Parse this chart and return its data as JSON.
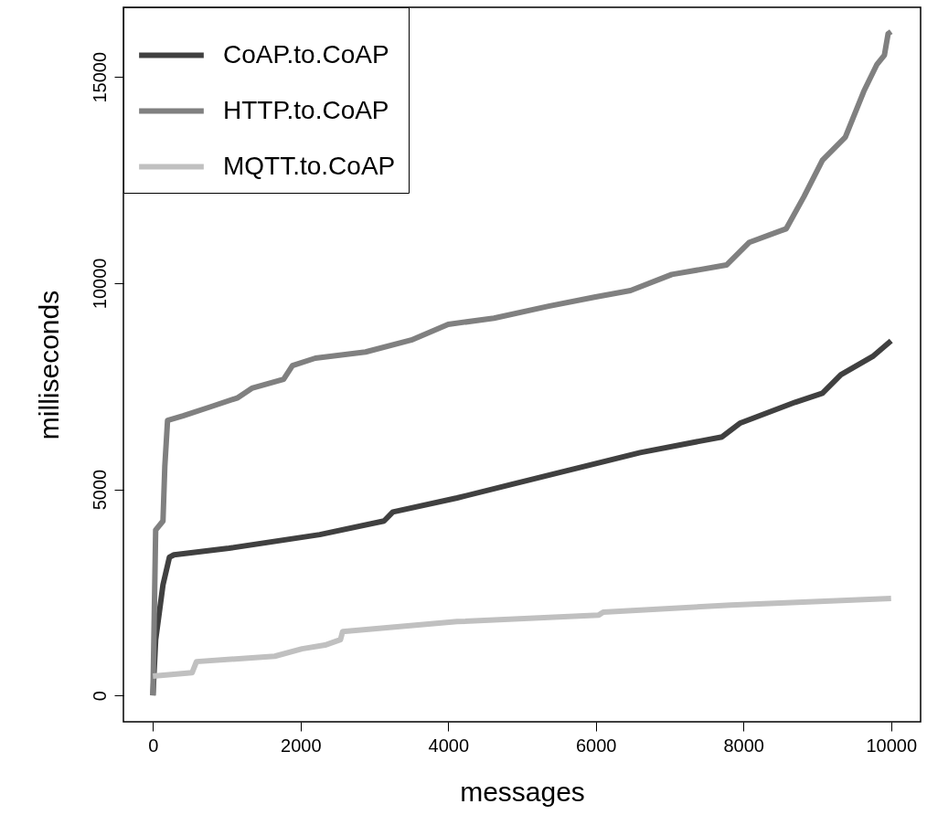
{
  "chart_data": {
    "type": "line",
    "xlabel": "messages",
    "ylabel": "milliseconds",
    "xlim": [
      -400,
      10400
    ],
    "ylim": [
      -640,
      16690
    ],
    "xticks": [
      0,
      2000,
      4000,
      6000,
      8000,
      10000
    ],
    "yticks": [
      0,
      5000,
      10000,
      15000
    ],
    "legend": "top left",
    "series": [
      {
        "name": "CoAP.to.CoAP",
        "color": "#404040",
        "x": [
          0,
          37,
          136,
          223,
          285,
          1030,
          2260,
          3130,
          3250,
          4120,
          4860,
          5610,
          6600,
          7710,
          7950,
          8700,
          9070,
          9320,
          9750,
          10000
        ],
        "values": [
          0,
          1350,
          2680,
          3350,
          3410,
          3570,
          3900,
          4230,
          4450,
          4790,
          5120,
          5450,
          5890,
          6270,
          6600,
          7110,
          7330,
          7780,
          8220,
          8600
        ]
      },
      {
        "name": "HTTP.to.CoAP",
        "color": "#808080",
        "x": [
          0,
          37,
          136,
          161,
          198,
          408,
          780,
          1150,
          1340,
          1770,
          1890,
          2200,
          2880,
          3500,
          4000,
          4620,
          5360,
          5980,
          6470,
          7030,
          7770,
          8080,
          8580,
          8820,
          9070,
          9380,
          9630,
          9810,
          9910,
          9960,
          10000
        ],
        "values": [
          0,
          4010,
          4230,
          5560,
          6670,
          6780,
          7000,
          7220,
          7450,
          7670,
          8000,
          8180,
          8330,
          8620,
          9000,
          9150,
          9440,
          9660,
          9820,
          10210,
          10440,
          10990,
          11320,
          12100,
          12980,
          13540,
          14650,
          15310,
          15530,
          16050,
          16100
        ]
      },
      {
        "name": "MQTT.to.CoAP",
        "color": "#c0c0c0",
        "x": [
          0,
          530,
          590,
          1650,
          2020,
          2330,
          2540,
          2570,
          4120,
          6040,
          6100,
          7830,
          10000
        ],
        "values": [
          470,
          550,
          820,
          950,
          1130,
          1220,
          1350,
          1550,
          1790,
          1950,
          2020,
          2190,
          2350
        ]
      }
    ]
  }
}
